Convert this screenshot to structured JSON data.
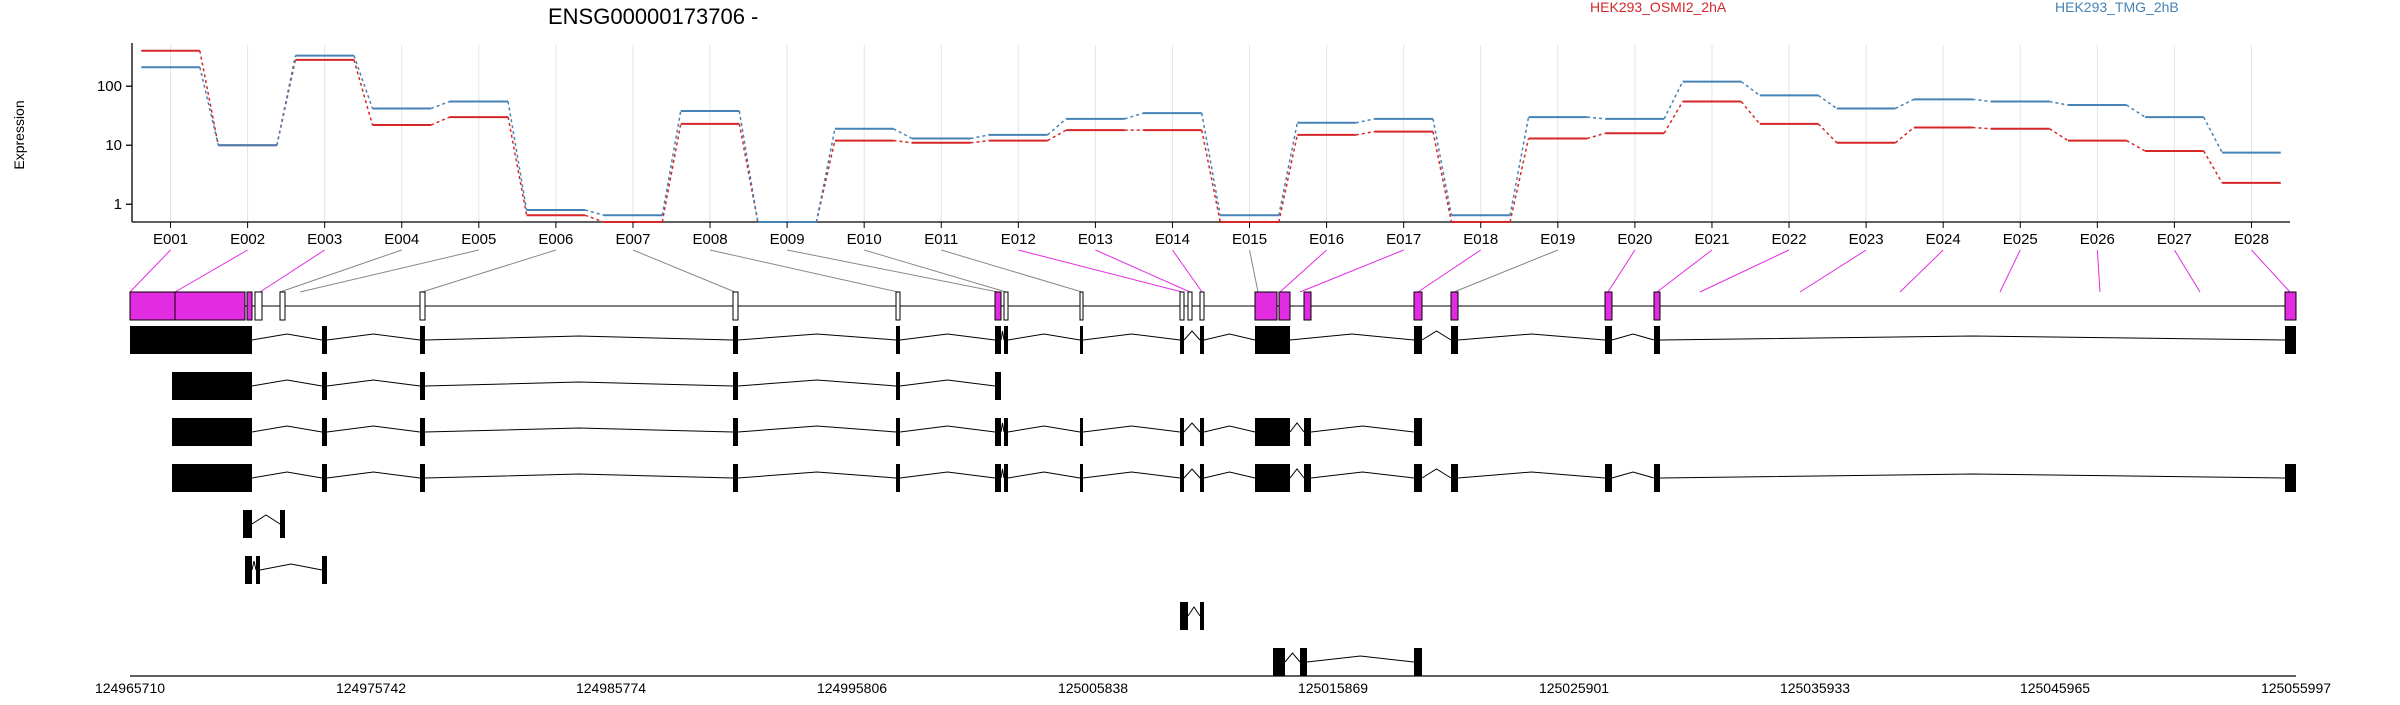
{
  "chart_data": {
    "type": "line",
    "title": "ENSG00000173706 -",
    "ylabel": "Expression",
    "yscale": "log",
    "ylim": [
      0.5,
      500
    ],
    "yticks": [
      1,
      10,
      100
    ],
    "ytick_labels": [
      "1",
      "10",
      "100"
    ],
    "grid": "vertical gridlines at each exon bin",
    "legend_position": "top-right",
    "categories": [
      "E001",
      "E002",
      "E003",
      "E004",
      "E005",
      "E006",
      "E007",
      "E008",
      "E009",
      "E010",
      "E011",
      "E012",
      "E013",
      "E014",
      "E015",
      "E016",
      "E017",
      "E018",
      "E019",
      "E020",
      "E021",
      "E022",
      "E023",
      "E024",
      "E025",
      "E026",
      "E027",
      "E028"
    ],
    "series": [
      {
        "name": "HEK293_OSMI2_2hA",
        "color": "#d62728",
        "values": [
          400,
          10,
          280,
          22,
          30,
          0.65,
          0.5,
          23,
          0.5,
          12,
          11,
          12,
          18,
          18,
          0.5,
          15,
          17,
          0.5,
          13,
          16,
          55,
          23,
          11,
          20,
          19,
          12,
          8,
          2.3
        ]
      },
      {
        "name": "HEK293_TMG_2hB",
        "color": "#4682b4",
        "values": [
          210,
          10,
          330,
          42,
          55,
          0.8,
          0.65,
          38,
          0.5,
          19,
          13,
          15,
          28,
          35,
          0.65,
          24,
          28,
          0.65,
          30,
          28,
          120,
          70,
          42,
          60,
          55,
          48,
          30,
          7.5
        ]
      }
    ],
    "coordinate_ticks": [
      "124965710",
      "124975742",
      "124985774",
      "124995806",
      "125005838",
      "125015869",
      "125025901",
      "125035933",
      "125045965",
      "125055997"
    ]
  },
  "colors": {
    "exon_highlight": "#e22ce2",
    "transcript_fill": "#000000",
    "axis": "#000000",
    "grid": "#e4e4e4"
  }
}
